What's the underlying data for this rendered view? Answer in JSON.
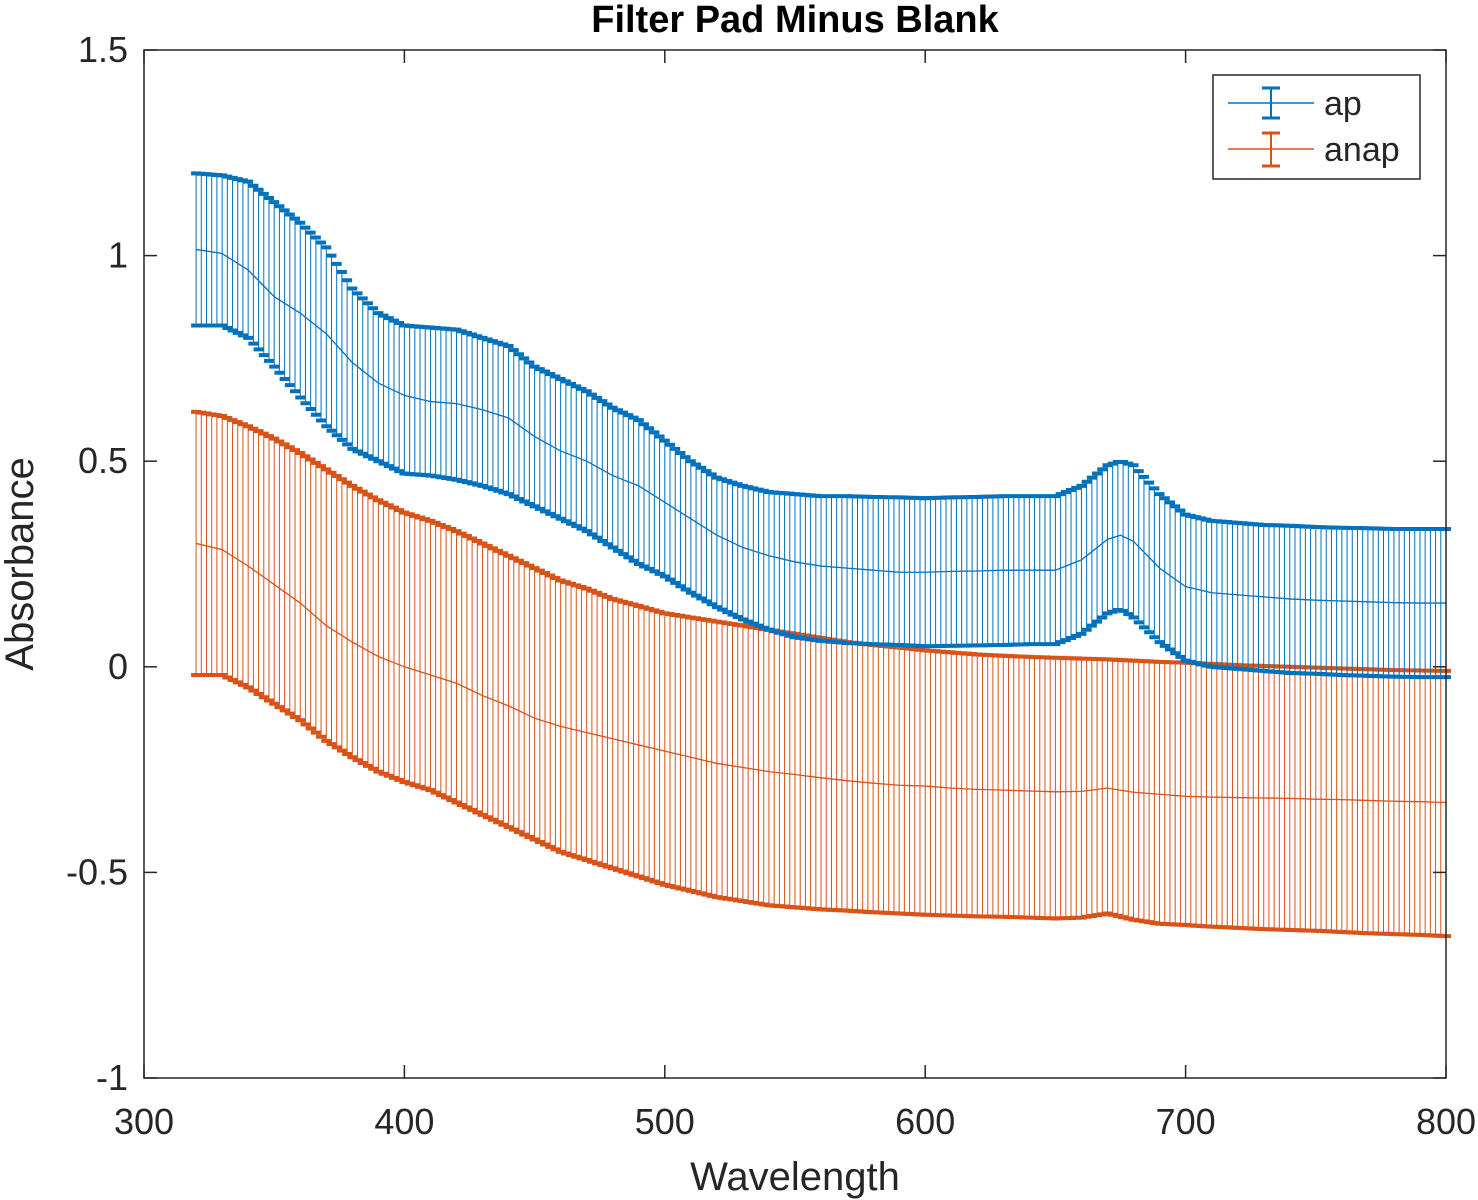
{
  "chart_data": {
    "type": "line",
    "title": "Filter Pad Minus Blank",
    "xlabel": "Wavelength",
    "ylabel": "Absorbance",
    "xlim": [
      300,
      800
    ],
    "ylim": [
      -1,
      1.5
    ],
    "xticks": [
      "300",
      "400",
      "500",
      "600",
      "700",
      "800"
    ],
    "yticks": [
      "-1",
      "-0.5",
      "0",
      "0.5",
      "1",
      "1.5"
    ],
    "grid": false,
    "legend_position": "top-right",
    "errorbars": true,
    "series": [
      {
        "name": "ap",
        "color": "#0072BD",
        "x": [
          320,
          330,
          340,
          350,
          360,
          370,
          380,
          390,
          400,
          410,
          420,
          430,
          440,
          450,
          460,
          470,
          480,
          490,
          500,
          510,
          520,
          530,
          540,
          550,
          560,
          570,
          580,
          590,
          600,
          610,
          620,
          630,
          640,
          650,
          660,
          670,
          675,
          680,
          690,
          700,
          710,
          720,
          730,
          740,
          750,
          760,
          770,
          780,
          790,
          800
        ],
        "mean": [
          1.015,
          1.005,
          0.965,
          0.9,
          0.86,
          0.81,
          0.74,
          0.69,
          0.66,
          0.645,
          0.64,
          0.625,
          0.605,
          0.56,
          0.525,
          0.5,
          0.465,
          0.44,
          0.4,
          0.36,
          0.32,
          0.29,
          0.27,
          0.255,
          0.245,
          0.24,
          0.235,
          0.23,
          0.23,
          0.232,
          0.233,
          0.235,
          0.235,
          0.235,
          0.26,
          0.31,
          0.32,
          0.305,
          0.24,
          0.195,
          0.18,
          0.175,
          0.17,
          0.165,
          0.162,
          0.16,
          0.158,
          0.156,
          0.155,
          0.155
        ],
        "upper": [
          1.2,
          1.195,
          1.18,
          1.13,
          1.08,
          1.02,
          0.92,
          0.86,
          0.83,
          0.825,
          0.82,
          0.8,
          0.78,
          0.73,
          0.7,
          0.67,
          0.63,
          0.6,
          0.55,
          0.5,
          0.46,
          0.44,
          0.425,
          0.42,
          0.415,
          0.415,
          0.413,
          0.412,
          0.41,
          0.412,
          0.413,
          0.415,
          0.415,
          0.415,
          0.44,
          0.49,
          0.5,
          0.49,
          0.42,
          0.37,
          0.355,
          0.35,
          0.345,
          0.343,
          0.34,
          0.338,
          0.337,
          0.335,
          0.335,
          0.335
        ],
        "lower": [
          0.83,
          0.83,
          0.8,
          0.73,
          0.655,
          0.585,
          0.53,
          0.5,
          0.47,
          0.465,
          0.455,
          0.44,
          0.42,
          0.39,
          0.36,
          0.33,
          0.29,
          0.25,
          0.22,
          0.18,
          0.145,
          0.115,
          0.09,
          0.072,
          0.063,
          0.058,
          0.055,
          0.053,
          0.05,
          0.051,
          0.052,
          0.053,
          0.055,
          0.055,
          0.08,
          0.13,
          0.14,
          0.12,
          0.06,
          0.015,
          0.0,
          -0.005,
          -0.01,
          -0.015,
          -0.017,
          -0.02,
          -0.022,
          -0.024,
          -0.025,
          -0.025
        ]
      },
      {
        "name": "anap",
        "color": "#D95319",
        "x": [
          320,
          330,
          340,
          350,
          360,
          370,
          380,
          390,
          400,
          410,
          420,
          430,
          440,
          450,
          460,
          470,
          480,
          490,
          500,
          510,
          520,
          530,
          540,
          550,
          560,
          570,
          580,
          590,
          600,
          610,
          620,
          630,
          640,
          650,
          660,
          670,
          680,
          690,
          700,
          710,
          720,
          730,
          740,
          750,
          760,
          770,
          780,
          790,
          800
        ],
        "mean": [
          0.3,
          0.285,
          0.245,
          0.2,
          0.155,
          0.1,
          0.06,
          0.025,
          0.0,
          -0.02,
          -0.04,
          -0.07,
          -0.095,
          -0.125,
          -0.145,
          -0.16,
          -0.175,
          -0.19,
          -0.205,
          -0.22,
          -0.235,
          -0.245,
          -0.255,
          -0.262,
          -0.27,
          -0.277,
          -0.283,
          -0.288,
          -0.29,
          -0.295,
          -0.298,
          -0.3,
          -0.302,
          -0.304,
          -0.303,
          -0.295,
          -0.305,
          -0.31,
          -0.315,
          -0.317,
          -0.318,
          -0.319,
          -0.32,
          -0.322,
          -0.323,
          -0.325,
          -0.327,
          -0.328,
          -0.33
        ],
        "upper": [
          0.62,
          0.61,
          0.585,
          0.555,
          0.52,
          0.48,
          0.44,
          0.405,
          0.375,
          0.355,
          0.33,
          0.3,
          0.27,
          0.24,
          0.21,
          0.19,
          0.165,
          0.148,
          0.13,
          0.12,
          0.11,
          0.1,
          0.09,
          0.08,
          0.07,
          0.06,
          0.053,
          0.047,
          0.04,
          0.035,
          0.03,
          0.027,
          0.024,
          0.022,
          0.02,
          0.018,
          0.015,
          0.012,
          0.01,
          0.007,
          0.004,
          0.002,
          0.0,
          -0.002,
          -0.004,
          -0.006,
          -0.008,
          -0.009,
          -0.01
        ],
        "lower": [
          -0.02,
          -0.02,
          -0.05,
          -0.09,
          -0.13,
          -0.18,
          -0.22,
          -0.255,
          -0.28,
          -0.3,
          -0.33,
          -0.36,
          -0.39,
          -0.42,
          -0.45,
          -0.47,
          -0.49,
          -0.51,
          -0.53,
          -0.545,
          -0.56,
          -0.57,
          -0.58,
          -0.585,
          -0.59,
          -0.593,
          -0.597,
          -0.6,
          -0.603,
          -0.605,
          -0.607,
          -0.608,
          -0.61,
          -0.612,
          -0.61,
          -0.6,
          -0.615,
          -0.625,
          -0.628,
          -0.632,
          -0.635,
          -0.638,
          -0.64,
          -0.642,
          -0.645,
          -0.648,
          -0.65,
          -0.652,
          -0.655
        ]
      }
    ]
  }
}
